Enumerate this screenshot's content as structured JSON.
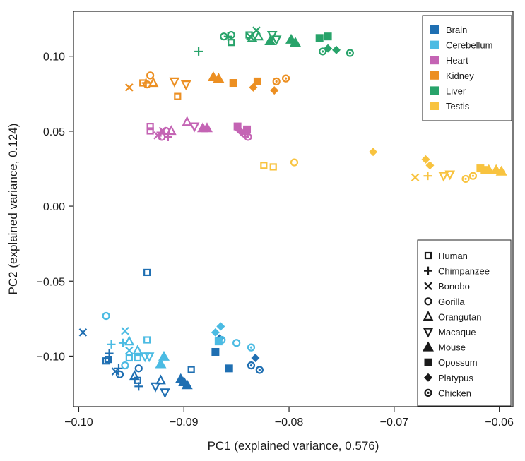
{
  "chart_data": {
    "type": "scatter",
    "xlabel": "PC1 (explained variance, 0.576)",
    "ylabel": "PC2 (explained variance, 0.124)",
    "xlim": [
      -0.1005,
      -0.0587
    ],
    "ylim": [
      -0.1337,
      0.13
    ],
    "xticks": [
      {
        "value": -0.1,
        "label": "−0.10"
      },
      {
        "value": -0.09,
        "label": "−0.09"
      },
      {
        "value": -0.08,
        "label": "−0.08"
      },
      {
        "value": -0.07,
        "label": "−0.07"
      },
      {
        "value": -0.06,
        "label": "−0.06"
      }
    ],
    "yticks": [
      {
        "value": 0.1,
        "label": "0.10"
      },
      {
        "value": 0.05,
        "label": "0.05"
      },
      {
        "value": 0.0,
        "label": "0.00"
      },
      {
        "value": -0.05,
        "label": "−0.05"
      },
      {
        "value": -0.1,
        "label": "−0.10"
      }
    ],
    "grid": false,
    "legend_tissue": {
      "position": "top-right",
      "items": [
        {
          "name": "Brain",
          "color": "#1f6fb2"
        },
        {
          "name": "Cerebellum",
          "color": "#4bbbe3"
        },
        {
          "name": "Heart",
          "color": "#c464b4"
        },
        {
          "name": "Kidney",
          "color": "#ec8f22"
        },
        {
          "name": "Liver",
          "color": "#28a36a"
        },
        {
          "name": "Testis",
          "color": "#f8c33f"
        }
      ]
    },
    "legend_species": {
      "position": "bottom-right",
      "items": [
        {
          "name": "Human",
          "marker": "square-open"
        },
        {
          "name": "Chimpanzee",
          "marker": "plus"
        },
        {
          "name": "Bonobo",
          "marker": "cross"
        },
        {
          "name": "Gorilla",
          "marker": "circle-open"
        },
        {
          "name": "Orangutan",
          "marker": "triangle-up-open"
        },
        {
          "name": "Macaque",
          "marker": "triangle-down-open"
        },
        {
          "name": "Mouse",
          "marker": "triangle-up-filled"
        },
        {
          "name": "Opossum",
          "marker": "square-filled"
        },
        {
          "name": "Platypus",
          "marker": "diamond-filled"
        },
        {
          "name": "Chicken",
          "marker": "circle-dot"
        }
      ]
    },
    "series": [
      {
        "tissue": "Brain",
        "color": "#1f6fb2",
        "points": [
          {
            "x": -0.0974,
            "y": -0.1032,
            "m": "square-open"
          },
          {
            "x": -0.0972,
            "y": -0.1022,
            "m": "square-open"
          },
          {
            "x": -0.0935,
            "y": -0.0442,
            "m": "square-open"
          },
          {
            "x": -0.0944,
            "y": -0.1162,
            "m": "square-open"
          },
          {
            "x": -0.0893,
            "y": -0.109,
            "m": "square-open"
          },
          {
            "x": -0.0971,
            "y": -0.0982,
            "m": "plus"
          },
          {
            "x": -0.0962,
            "y": -0.1082,
            "m": "plus"
          },
          {
            "x": -0.0943,
            "y": -0.1202,
            "m": "plus"
          },
          {
            "x": -0.0996,
            "y": -0.0842,
            "m": "cross"
          },
          {
            "x": -0.0965,
            "y": -0.1102,
            "m": "cross"
          },
          {
            "x": -0.0961,
            "y": -0.1122,
            "m": "circle-open"
          },
          {
            "x": -0.0943,
            "y": -0.1082,
            "m": "circle-open"
          },
          {
            "x": -0.0947,
            "y": -0.1132,
            "m": "triangle-up-open"
          },
          {
            "x": -0.0922,
            "y": -0.1162,
            "m": "triangle-up-open"
          },
          {
            "x": -0.0927,
            "y": -0.1202,
            "m": "triangle-down-open"
          },
          {
            "x": -0.0918,
            "y": -0.1242,
            "m": "triangle-down-open"
          },
          {
            "x": -0.0903,
            "y": -0.1152,
            "m": "triangle-up-filled"
          },
          {
            "x": -0.09,
            "y": -0.1172,
            "m": "triangle-up-filled"
          },
          {
            "x": -0.0897,
            "y": -0.1192,
            "m": "triangle-up-filled"
          },
          {
            "x": -0.087,
            "y": -0.0972,
            "m": "square-filled"
          },
          {
            "x": -0.0857,
            "y": -0.1082,
            "m": "square-filled"
          },
          {
            "x": -0.0866,
            "y": -0.0882,
            "m": "diamond-filled"
          },
          {
            "x": -0.0832,
            "y": -0.1012,
            "m": "diamond-filled"
          },
          {
            "x": -0.0836,
            "y": -0.1062,
            "m": "circle-dot"
          },
          {
            "x": -0.0828,
            "y": -0.1092,
            "m": "circle-dot"
          }
        ]
      },
      {
        "tissue": "Cerebellum",
        "color": "#4bbbe3",
        "points": [
          {
            "x": -0.0935,
            "y": -0.0892,
            "m": "square-open"
          },
          {
            "x": -0.0952,
            "y": -0.1012,
            "m": "square-open"
          },
          {
            "x": -0.0944,
            "y": -0.1012,
            "m": "square-open"
          },
          {
            "x": -0.0958,
            "y": -0.0912,
            "m": "plus"
          },
          {
            "x": -0.0969,
            "y": -0.0922,
            "m": "plus"
          },
          {
            "x": -0.0956,
            "y": -0.0832,
            "m": "cross"
          },
          {
            "x": -0.0952,
            "y": -0.0962,
            "m": "cross"
          },
          {
            "x": -0.0974,
            "y": -0.0732,
            "m": "circle-open"
          },
          {
            "x": -0.0956,
            "y": -0.1062,
            "m": "circle-open"
          },
          {
            "x": -0.0864,
            "y": -0.0892,
            "m": "circle-open"
          },
          {
            "x": -0.085,
            "y": -0.0912,
            "m": "circle-open"
          },
          {
            "x": -0.0952,
            "y": -0.0902,
            "m": "triangle-up-open"
          },
          {
            "x": -0.0944,
            "y": -0.0962,
            "m": "triangle-up-open"
          },
          {
            "x": -0.0933,
            "y": -0.1002,
            "m": "triangle-down-open"
          },
          {
            "x": -0.0937,
            "y": -0.1002,
            "m": "triangle-down-open"
          },
          {
            "x": -0.0919,
            "y": -0.1002,
            "m": "triangle-up-filled"
          },
          {
            "x": -0.0922,
            "y": -0.1052,
            "m": "triangle-up-filled"
          },
          {
            "x": -0.0867,
            "y": -0.0902,
            "m": "square-filled"
          },
          {
            "x": -0.087,
            "y": -0.0842,
            "m": "diamond-filled"
          },
          {
            "x": -0.0865,
            "y": -0.0802,
            "m": "diamond-filled"
          },
          {
            "x": -0.0836,
            "y": -0.0942,
            "m": "circle-dot"
          }
        ]
      },
      {
        "tissue": "Heart",
        "color": "#c464b4",
        "points": [
          {
            "x": -0.0932,
            "y": 0.0532,
            "m": "square-open"
          },
          {
            "x": -0.0932,
            "y": 0.0502,
            "m": "square-open"
          },
          {
            "x": -0.0922,
            "y": 0.0492,
            "m": "plus"
          },
          {
            "x": -0.0915,
            "y": 0.0462,
            "m": "plus"
          },
          {
            "x": -0.0925,
            "y": 0.0472,
            "m": "cross"
          },
          {
            "x": -0.092,
            "y": 0.0502,
            "m": "cross"
          },
          {
            "x": -0.0921,
            "y": 0.0462,
            "m": "circle-open"
          },
          {
            "x": -0.0917,
            "y": 0.0502,
            "m": "circle-open"
          },
          {
            "x": -0.0912,
            "y": 0.0502,
            "m": "triangle-up-open"
          },
          {
            "x": -0.0897,
            "y": 0.0562,
            "m": "triangle-up-open"
          },
          {
            "x": -0.089,
            "y": 0.0532,
            "m": "triangle-down-open"
          },
          {
            "x": -0.0882,
            "y": 0.0522,
            "m": "triangle-up-filled"
          },
          {
            "x": -0.0878,
            "y": 0.0522,
            "m": "triangle-up-filled"
          },
          {
            "x": -0.0849,
            "y": 0.0532,
            "m": "square-filled"
          },
          {
            "x": -0.084,
            "y": 0.0512,
            "m": "square-filled"
          },
          {
            "x": -0.0845,
            "y": 0.0492,
            "m": "diamond-filled"
          },
          {
            "x": -0.0848,
            "y": 0.0512,
            "m": "diamond-filled"
          },
          {
            "x": -0.0839,
            "y": 0.0462,
            "m": "circle-dot"
          },
          {
            "x": -0.0842,
            "y": 0.0482,
            "m": "circle-dot"
          }
        ]
      },
      {
        "tissue": "Kidney",
        "color": "#ec8f22",
        "points": [
          {
            "x": -0.0939,
            "y": 0.0822,
            "m": "square-open"
          },
          {
            "x": -0.0906,
            "y": 0.0732,
            "m": "square-open"
          },
          {
            "x": -0.0936,
            "y": 0.0822,
            "m": "plus"
          },
          {
            "x": -0.0952,
            "y": 0.0792,
            "m": "cross"
          },
          {
            "x": -0.0932,
            "y": 0.0872,
            "m": "circle-open"
          },
          {
            "x": -0.0935,
            "y": 0.0812,
            "m": "circle-open"
          },
          {
            "x": -0.0929,
            "y": 0.0822,
            "m": "triangle-up-open"
          },
          {
            "x": -0.0909,
            "y": 0.0832,
            "m": "triangle-down-open"
          },
          {
            "x": -0.0898,
            "y": 0.0812,
            "m": "triangle-down-open"
          },
          {
            "x": -0.0872,
            "y": 0.0862,
            "m": "triangle-up-filled"
          },
          {
            "x": -0.0867,
            "y": 0.0852,
            "m": "triangle-up-filled"
          },
          {
            "x": -0.0853,
            "y": 0.0822,
            "m": "square-filled"
          },
          {
            "x": -0.083,
            "y": 0.0832,
            "m": "square-filled"
          },
          {
            "x": -0.0834,
            "y": 0.0792,
            "m": "diamond-filled"
          },
          {
            "x": -0.0814,
            "y": 0.0772,
            "m": "diamond-filled"
          },
          {
            "x": -0.0812,
            "y": 0.0832,
            "m": "circle-dot"
          },
          {
            "x": -0.0803,
            "y": 0.0852,
            "m": "circle-dot"
          }
        ]
      },
      {
        "tissue": "Liver",
        "color": "#28a36a",
        "points": [
          {
            "x": -0.0855,
            "y": 0.1092,
            "m": "square-open"
          },
          {
            "x": -0.0838,
            "y": 0.1142,
            "m": "square-open"
          },
          {
            "x": -0.0886,
            "y": 0.1032,
            "m": "plus"
          },
          {
            "x": -0.0858,
            "y": 0.1132,
            "m": "plus"
          },
          {
            "x": -0.0837,
            "y": 0.1132,
            "m": "cross"
          },
          {
            "x": -0.0831,
            "y": 0.1172,
            "m": "cross"
          },
          {
            "x": -0.0862,
            "y": 0.1132,
            "m": "circle-open"
          },
          {
            "x": -0.0855,
            "y": 0.1142,
            "m": "circle-open"
          },
          {
            "x": -0.0835,
            "y": 0.1122,
            "m": "triangle-up-open"
          },
          {
            "x": -0.0829,
            "y": 0.1132,
            "m": "triangle-up-open"
          },
          {
            "x": -0.0816,
            "y": 0.1142,
            "m": "triangle-down-open"
          },
          {
            "x": -0.0812,
            "y": 0.1112,
            "m": "triangle-down-open"
          },
          {
            "x": -0.0818,
            "y": 0.1102,
            "m": "triangle-up-filled"
          },
          {
            "x": -0.0798,
            "y": 0.1112,
            "m": "triangle-up-filled"
          },
          {
            "x": -0.0794,
            "y": 0.1092,
            "m": "triangle-up-filled"
          },
          {
            "x": -0.0771,
            "y": 0.1122,
            "m": "square-filled"
          },
          {
            "x": -0.0763,
            "y": 0.1132,
            "m": "square-filled"
          },
          {
            "x": -0.0763,
            "y": 0.1052,
            "m": "diamond-filled"
          },
          {
            "x": -0.0755,
            "y": 0.1042,
            "m": "diamond-filled"
          },
          {
            "x": -0.0768,
            "y": 0.1032,
            "m": "circle-dot"
          },
          {
            "x": -0.0742,
            "y": 0.1022,
            "m": "circle-dot"
          }
        ]
      },
      {
        "tissue": "Testis",
        "color": "#f8c33f",
        "points": [
          {
            "x": -0.0824,
            "y": 0.0272,
            "m": "square-open"
          },
          {
            "x": -0.0815,
            "y": 0.0262,
            "m": "square-open"
          },
          {
            "x": -0.0795,
            "y": 0.0292,
            "m": "circle-open"
          },
          {
            "x": -0.072,
            "y": 0.0362,
            "m": "diamond-filled"
          },
          {
            "x": -0.067,
            "y": 0.0312,
            "m": "diamond-filled"
          },
          {
            "x": -0.0666,
            "y": 0.0272,
            "m": "diamond-filled"
          },
          {
            "x": -0.068,
            "y": 0.0192,
            "m": "cross"
          },
          {
            "x": -0.0668,
            "y": 0.0202,
            "m": "plus"
          },
          {
            "x": -0.0653,
            "y": 0.0202,
            "m": "triangle-down-open"
          },
          {
            "x": -0.0647,
            "y": 0.0212,
            "m": "triangle-down-open"
          },
          {
            "x": -0.0632,
            "y": 0.0182,
            "m": "circle-dot"
          },
          {
            "x": -0.0625,
            "y": 0.0202,
            "m": "circle-dot"
          },
          {
            "x": -0.0618,
            "y": 0.0252,
            "m": "square-filled"
          },
          {
            "x": -0.0614,
            "y": 0.0242,
            "m": "square-filled"
          },
          {
            "x": -0.061,
            "y": 0.0242,
            "m": "triangle-up-filled"
          },
          {
            "x": -0.0603,
            "y": 0.0242,
            "m": "triangle-up-filled"
          },
          {
            "x": -0.0598,
            "y": 0.0232,
            "m": "triangle-up-filled"
          }
        ]
      }
    ]
  }
}
